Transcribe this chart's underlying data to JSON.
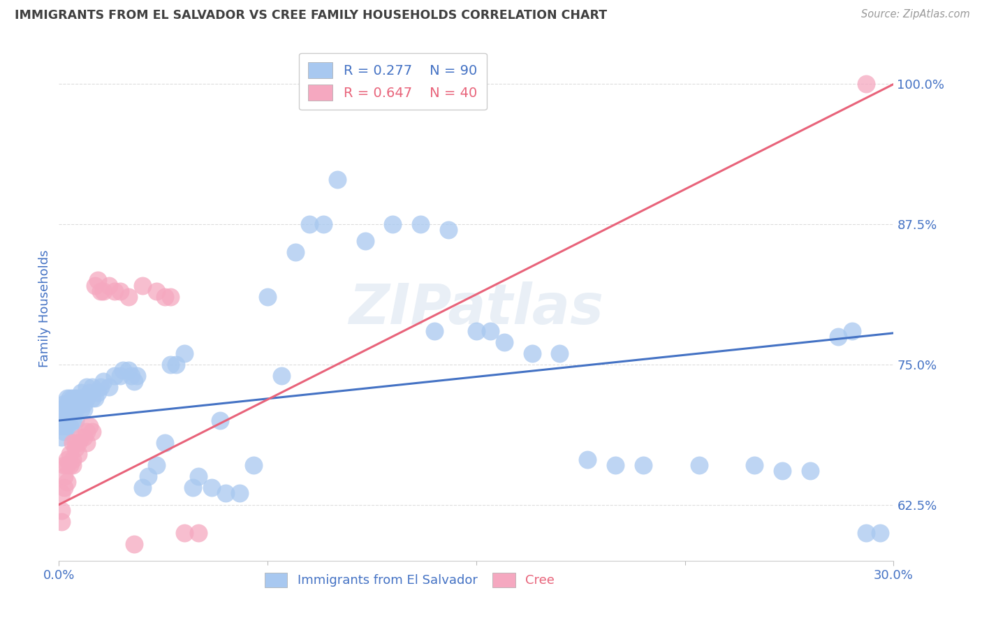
{
  "title": "IMMIGRANTS FROM EL SALVADOR VS CREE FAMILY HOUSEHOLDS CORRELATION CHART",
  "source": "Source: ZipAtlas.com",
  "xlabel_blue": "Immigrants from El Salvador",
  "xlabel_pink": "Cree",
  "ylabel": "Family Households",
  "watermark": "ZIPatlas",
  "blue_R": "R = 0.277",
  "blue_N": "N = 90",
  "pink_R": "R = 0.647",
  "pink_N": "N = 40",
  "blue_color": "#A8C8F0",
  "pink_color": "#F5A8C0",
  "blue_line_color": "#4472C4",
  "pink_line_color": "#E8637A",
  "title_color": "#404040",
  "axis_label_color": "#4472C4",
  "tick_label_color": "#4472C4",
  "source_color": "#999999",
  "background_color": "#FFFFFF",
  "grid_color": "#DDDDDD",
  "xmin": 0.0,
  "xmax": 0.3,
  "ymin": 0.575,
  "ymax": 1.025,
  "yticks": [
    0.625,
    0.75,
    0.875,
    1.0
  ],
  "ytick_labels": [
    "62.5%",
    "75.0%",
    "87.5%",
    "100.0%"
  ],
  "blue_line_x": [
    0.0,
    0.3
  ],
  "blue_line_y": [
    0.7,
    0.778
  ],
  "pink_line_x": [
    0.0,
    0.3
  ],
  "pink_line_y": [
    0.625,
    1.0
  ],
  "blue_scatter_x": [
    0.001,
    0.001,
    0.001,
    0.002,
    0.002,
    0.002,
    0.002,
    0.003,
    0.003,
    0.003,
    0.003,
    0.003,
    0.004,
    0.004,
    0.004,
    0.004,
    0.005,
    0.005,
    0.005,
    0.005,
    0.006,
    0.006,
    0.006,
    0.006,
    0.007,
    0.007,
    0.008,
    0.008,
    0.008,
    0.009,
    0.009,
    0.009,
    0.01,
    0.01,
    0.011,
    0.012,
    0.012,
    0.013,
    0.014,
    0.015,
    0.016,
    0.018,
    0.02,
    0.022,
    0.023,
    0.025,
    0.026,
    0.027,
    0.028,
    0.03,
    0.032,
    0.035,
    0.038,
    0.04,
    0.042,
    0.045,
    0.048,
    0.05,
    0.055,
    0.06,
    0.065,
    0.07,
    0.08,
    0.085,
    0.09,
    0.095,
    0.1,
    0.11,
    0.12,
    0.13,
    0.14,
    0.15,
    0.16,
    0.17,
    0.18,
    0.19,
    0.2,
    0.21,
    0.23,
    0.25,
    0.26,
    0.27,
    0.28,
    0.285,
    0.29,
    0.155,
    0.135,
    0.075,
    0.058,
    0.295
  ],
  "blue_scatter_y": [
    0.695,
    0.71,
    0.685,
    0.7,
    0.69,
    0.715,
    0.705,
    0.7,
    0.715,
    0.695,
    0.71,
    0.72,
    0.705,
    0.72,
    0.71,
    0.695,
    0.715,
    0.71,
    0.7,
    0.72,
    0.72,
    0.71,
    0.7,
    0.715,
    0.72,
    0.715,
    0.725,
    0.71,
    0.72,
    0.72,
    0.715,
    0.71,
    0.73,
    0.72,
    0.725,
    0.73,
    0.72,
    0.72,
    0.725,
    0.73,
    0.735,
    0.73,
    0.74,
    0.74,
    0.745,
    0.745,
    0.74,
    0.735,
    0.74,
    0.64,
    0.65,
    0.66,
    0.68,
    0.75,
    0.75,
    0.76,
    0.64,
    0.65,
    0.64,
    0.635,
    0.635,
    0.66,
    0.74,
    0.85,
    0.875,
    0.875,
    0.915,
    0.86,
    0.875,
    0.875,
    0.87,
    0.78,
    0.77,
    0.76,
    0.76,
    0.665,
    0.66,
    0.66,
    0.66,
    0.66,
    0.655,
    0.655,
    0.775,
    0.78,
    0.6,
    0.78,
    0.78,
    0.81,
    0.7,
    0.6
  ],
  "pink_scatter_x": [
    0.001,
    0.001,
    0.001,
    0.002,
    0.002,
    0.002,
    0.003,
    0.003,
    0.003,
    0.004,
    0.004,
    0.005,
    0.005,
    0.005,
    0.006,
    0.006,
    0.007,
    0.007,
    0.008,
    0.009,
    0.01,
    0.01,
    0.011,
    0.012,
    0.013,
    0.014,
    0.015,
    0.016,
    0.018,
    0.02,
    0.022,
    0.025,
    0.027,
    0.03,
    0.035,
    0.038,
    0.04,
    0.045,
    0.05,
    0.29
  ],
  "pink_scatter_y": [
    0.62,
    0.61,
    0.635,
    0.65,
    0.66,
    0.64,
    0.665,
    0.66,
    0.645,
    0.67,
    0.66,
    0.665,
    0.68,
    0.66,
    0.68,
    0.675,
    0.68,
    0.67,
    0.685,
    0.685,
    0.69,
    0.68,
    0.695,
    0.69,
    0.82,
    0.825,
    0.815,
    0.815,
    0.82,
    0.815,
    0.815,
    0.81,
    0.59,
    0.82,
    0.815,
    0.81,
    0.81,
    0.6,
    0.6,
    1.0
  ]
}
